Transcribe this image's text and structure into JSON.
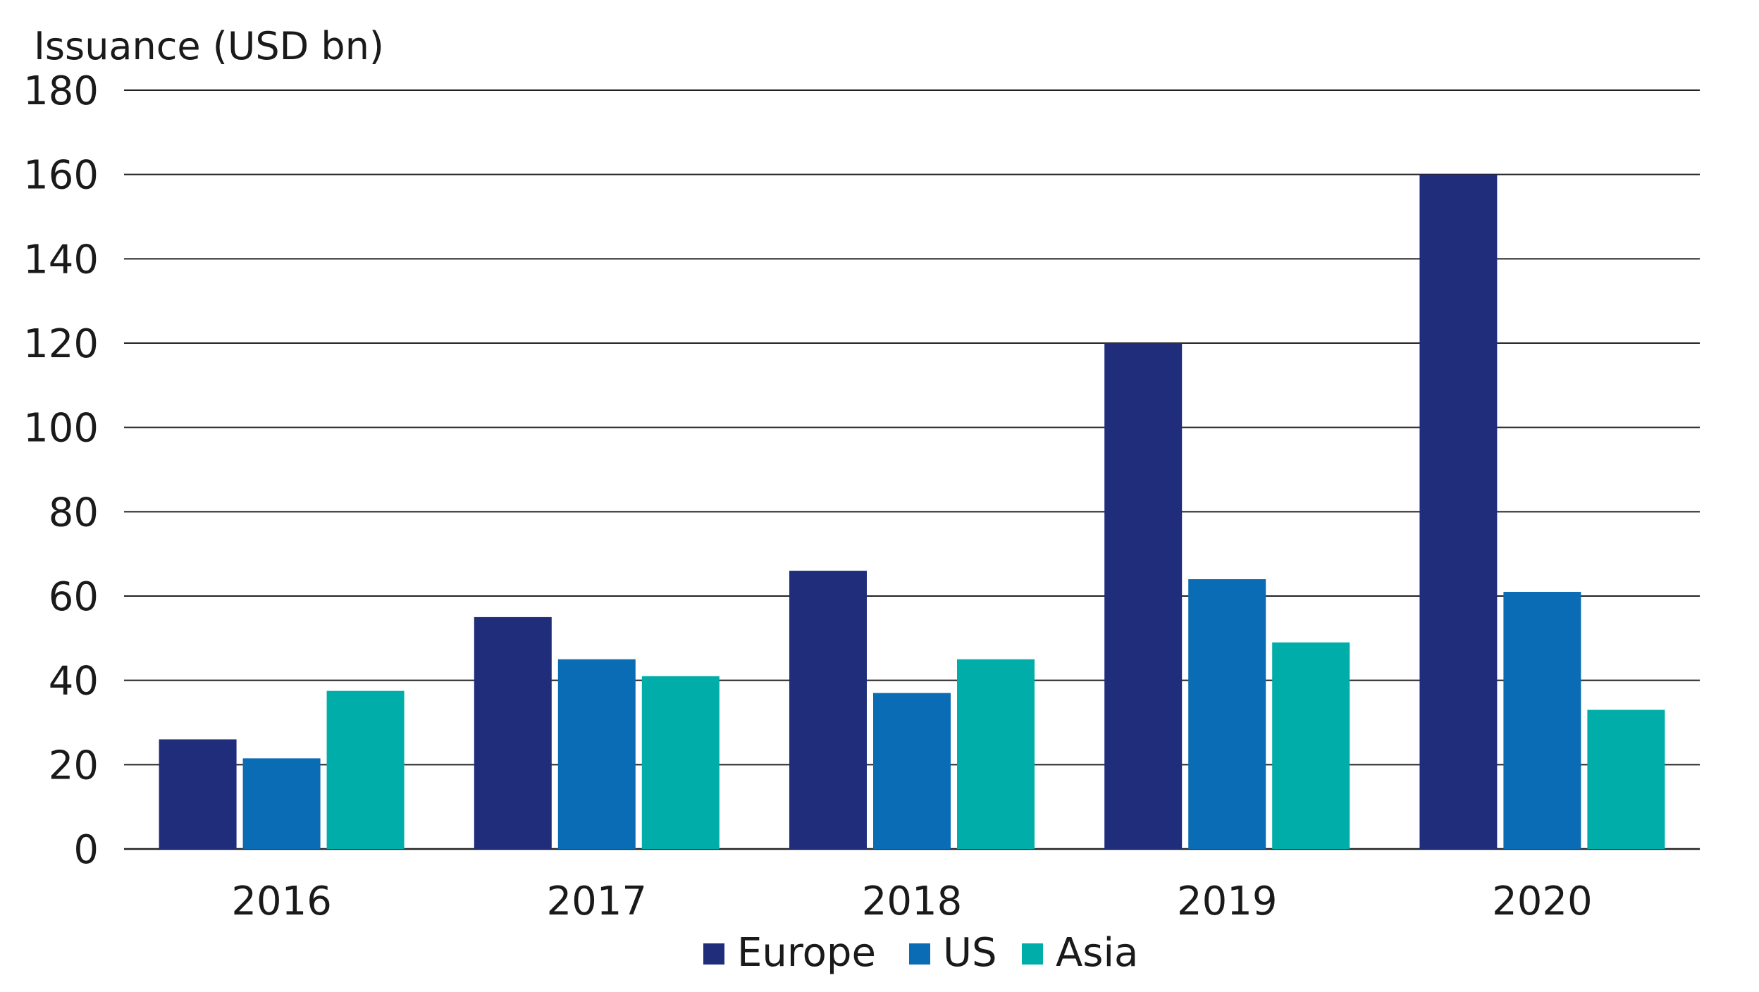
{
  "chart_data": {
    "type": "bar",
    "title": "",
    "xlabel": "",
    "ylabel": "Issuance (USD bn)",
    "ylim": [
      0,
      180
    ],
    "yticks": [
      0,
      20,
      40,
      60,
      80,
      100,
      120,
      140,
      160,
      180
    ],
    "grid": true,
    "legend_position": "bottom-center",
    "categories": [
      "2016",
      "2017",
      "2018",
      "2019",
      "2020"
    ],
    "series": [
      {
        "name": "Europe",
        "color": "#1f2d7b",
        "values": [
          26,
          55,
          66,
          120,
          160
        ]
      },
      {
        "name": "US",
        "color": "#0a6cb5",
        "values": [
          21.5,
          45,
          37,
          64,
          61
        ]
      },
      {
        "name": "Asia",
        "color": "#00ada9",
        "values": [
          37.5,
          41,
          45,
          49,
          33
        ]
      }
    ]
  }
}
